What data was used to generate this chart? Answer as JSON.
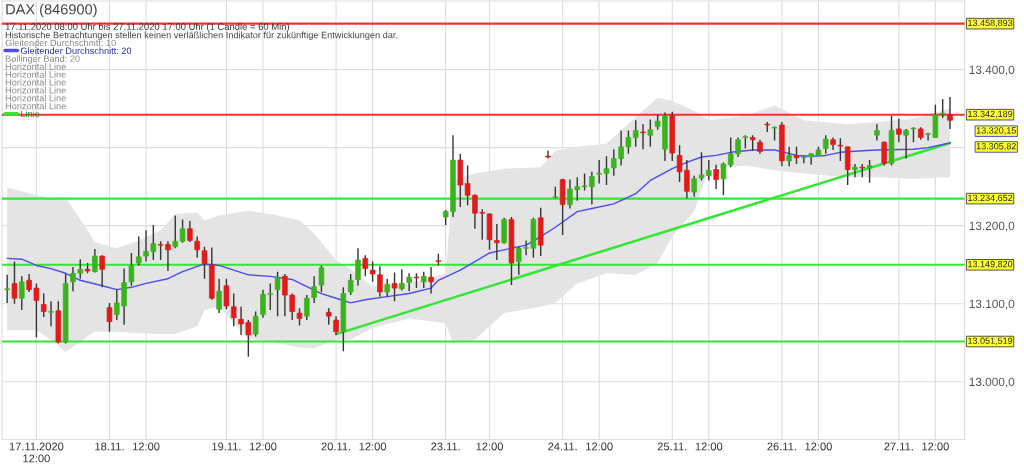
{
  "chart_data": {
    "type": "candlestick",
    "title": "DAX (846900)",
    "subtitle": "17.11.2020 08:00 Uhr bis 27.11.2020 17:00 Uhr (1 Candle = 60 Min)",
    "categories": [
      null,
      null,
      null,
      null,
      "17.11.2020\n12:00",
      null,
      null,
      null,
      null,
      null,
      null,
      null,
      null,
      null,
      "18.11.",
      null,
      null,
      null,
      null,
      "12:00",
      null,
      null,
      null,
      null,
      null,
      null,
      null,
      null,
      null,
      null,
      "19.11.",
      null,
      null,
      null,
      null,
      "12:00",
      null,
      null,
      null,
      null,
      null,
      null,
      null,
      null,
      null,
      "20.11.",
      null,
      null,
      null,
      null,
      "12:00",
      null,
      null,
      null,
      null,
      null,
      null,
      null,
      null,
      null,
      "23.11.",
      null,
      null,
      null,
      null,
      null,
      "12:00",
      null,
      null,
      null,
      null,
      null,
      null,
      null,
      null,
      null,
      "24.11.",
      null,
      null,
      null,
      null,
      "12:00",
      null,
      null,
      null,
      null,
      null,
      null,
      null,
      null,
      null,
      "25.11.",
      null,
      null,
      null,
      null,
      "12:00",
      null,
      null,
      null,
      null,
      null,
      null,
      null,
      null,
      null,
      "26.11.",
      null,
      null,
      null,
      null,
      "12:00",
      null,
      null,
      null,
      null,
      null,
      null,
      null,
      null,
      null,
      null,
      "27.11.",
      null,
      null,
      null,
      null,
      "12:00",
      null,
      null
    ],
    "ohlc": [
      [
        13118,
        13137,
        13101,
        13119
      ],
      [
        13126,
        13154,
        13100,
        13107
      ],
      [
        13107,
        13135,
        13092,
        13128
      ],
      [
        13130,
        13138,
        13115,
        13118
      ],
      [
        13120,
        13126,
        13057,
        13104
      ],
      [
        13099,
        13113,
        13083,
        13090
      ],
      [
        13089,
        13103,
        13071,
        13090
      ],
      [
        13091,
        13103,
        13049,
        13051
      ],
      [
        13051,
        13138,
        13049,
        13126
      ],
      [
        13128,
        13147,
        13116,
        13139
      ],
      [
        13139,
        13157,
        13132,
        13144
      ],
      [
        13144,
        13152,
        13139,
        13142
      ],
      [
        13141,
        13170,
        13140,
        13161
      ],
      [
        13161,
        13162,
        13121,
        13144
      ],
      [
        13095,
        13101,
        13064,
        13077
      ],
      [
        13086,
        13118,
        13079,
        13101
      ],
      [
        13097,
        13145,
        13073,
        13127
      ],
      [
        13128,
        13165,
        13123,
        13149
      ],
      [
        13152,
        13186,
        13149,
        13160
      ],
      [
        13161,
        13194,
        13154,
        13167
      ],
      [
        13167,
        13201,
        13156,
        13177
      ],
      [
        13176,
        13180,
        13156,
        13175
      ],
      [
        13176,
        13180,
        13142,
        13169
      ],
      [
        13173,
        13213,
        13171,
        13180
      ],
      [
        13180,
        13208,
        13178,
        13196
      ],
      [
        13196,
        13206,
        13179,
        13181
      ],
      [
        13180,
        13186,
        13159,
        13169
      ],
      [
        13168,
        13173,
        13132,
        13151
      ],
      [
        13150,
        13172,
        13105,
        13107
      ],
      [
        13093,
        13132,
        13088,
        13116
      ],
      [
        13123,
        13132,
        13093,
        13097
      ],
      [
        13096,
        13113,
        13071,
        13082
      ],
      [
        13080,
        13096,
        13060,
        13074
      ],
      [
        13076,
        13079,
        13032,
        13060
      ],
      [
        13061,
        13090,
        13058,
        13084
      ],
      [
        13086,
        13118,
        13082,
        13112
      ],
      [
        13112,
        13126,
        13092,
        13113
      ],
      [
        13118,
        13141,
        13084,
        13134
      ],
      [
        13135,
        13138,
        13084,
        13111
      ],
      [
        13111,
        13113,
        13079,
        13090
      ],
      [
        13088,
        13094,
        13072,
        13081
      ],
      [
        13084,
        13111,
        13079,
        13107
      ],
      [
        13108,
        13135,
        13101,
        13122
      ],
      [
        13124,
        13149,
        13115,
        13146
      ],
      [
        13089,
        13094,
        13073,
        13084
      ],
      [
        13079,
        13084,
        13060,
        13064
      ],
      [
        13064,
        13121,
        13039,
        13113
      ],
      [
        13115,
        13138,
        13111,
        13130
      ],
      [
        13131,
        13171,
        13123,
        13156
      ],
      [
        13158,
        13162,
        13135,
        13145
      ],
      [
        13143,
        13154,
        13128,
        13138
      ],
      [
        13137,
        13148,
        13109,
        13115
      ],
      [
        13115,
        13132,
        13109,
        13125
      ],
      [
        13126,
        13140,
        13103,
        13120
      ],
      [
        13119,
        13144,
        13117,
        13126
      ],
      [
        13127,
        13139,
        13116,
        13134
      ],
      [
        13134,
        13139,
        13120,
        13133
      ],
      [
        13128,
        13141,
        13120,
        13135
      ],
      [
        13134,
        13147,
        13113,
        13128
      ],
      [
        13155,
        13164,
        13149,
        13154
      ],
      [
        13211,
        13220,
        13201,
        13218
      ],
      [
        13218,
        13316,
        13211,
        13284
      ],
      [
        13284,
        13292,
        13224,
        13252
      ],
      [
        13254,
        13277,
        13226,
        13239
      ],
      [
        13239,
        13240,
        13196,
        13216
      ],
      [
        13217,
        13221,
        13182,
        13216
      ],
      [
        13215,
        13216,
        13169,
        13182
      ],
      [
        13181,
        13202,
        13156,
        13178
      ],
      [
        13178,
        13210,
        13177,
        13208
      ],
      [
        13208,
        13211,
        13124,
        13152
      ],
      [
        13154,
        13173,
        13137,
        13171
      ],
      [
        13171,
        13181,
        13162,
        13172
      ],
      [
        13171,
        13210,
        13159,
        13208
      ],
      [
        13210,
        13223,
        13161,
        13175
      ],
      [
        13289,
        13296,
        13286,
        13288
      ],
      [
        13236,
        13250,
        13235,
        13237
      ],
      [
        13259,
        13260,
        13188,
        13227
      ],
      [
        13227,
        13259,
        13222,
        13247
      ],
      [
        13246,
        13262,
        13232,
        13250
      ],
      [
        13250,
        13267,
        13245,
        13251
      ],
      [
        13250,
        13269,
        13227,
        13263
      ],
      [
        13266,
        13284,
        13254,
        13267
      ],
      [
        13267,
        13289,
        13252,
        13273
      ],
      [
        13274,
        13298,
        13264,
        13286
      ],
      [
        13286,
        13322,
        13277,
        13301
      ],
      [
        13301,
        13322,
        13292,
        13313
      ],
      [
        13313,
        13335,
        13301,
        13322
      ],
      [
        13320,
        13330,
        13298,
        13319
      ],
      [
        13316,
        13336,
        13301,
        13323
      ],
      [
        13327,
        13342,
        13323,
        13334
      ],
      [
        13298,
        13345,
        13283,
        13341
      ],
      [
        13341,
        13346,
        13283,
        13293
      ],
      [
        13290,
        13303,
        13256,
        13269
      ],
      [
        13271,
        13284,
        13235,
        13244
      ],
      [
        13243,
        13264,
        13237,
        13260
      ],
      [
        13261,
        13294,
        13258,
        13265
      ],
      [
        13264,
        13284,
        13258,
        13271
      ],
      [
        13272,
        13278,
        13247,
        13259
      ],
      [
        13260,
        13281,
        13239,
        13279
      ],
      [
        13278,
        13313,
        13275,
        13292
      ],
      [
        13292,
        13313,
        13288,
        13310
      ],
      [
        13313,
        13316,
        13299,
        13314
      ],
      [
        13313,
        13316,
        13296,
        13310
      ],
      [
        13307,
        13310,
        13292,
        13295
      ],
      [
        13330,
        13333,
        13320,
        13329
      ],
      [
        13325,
        13327,
        13309,
        13326
      ],
      [
        13329,
        13333,
        13276,
        13283
      ],
      [
        13283,
        13301,
        13276,
        13290
      ],
      [
        13290,
        13301,
        13279,
        13287
      ],
      [
        13287,
        13289,
        13280,
        13288
      ],
      [
        13288,
        13293,
        13278,
        13292
      ],
      [
        13290,
        13301,
        13290,
        13297
      ],
      [
        13299,
        13316,
        13292,
        13311
      ],
      [
        13310,
        13313,
        13297,
        13304
      ],
      [
        13303,
        13312,
        13283,
        13302
      ],
      [
        13301,
        13301,
        13252,
        13272
      ],
      [
        13272,
        13279,
        13262,
        13275
      ],
      [
        13275,
        13279,
        13262,
        13274
      ],
      [
        13274,
        13284,
        13255,
        13277
      ],
      [
        13316,
        13330,
        13309,
        13322
      ],
      [
        13307,
        13308,
        13277,
        13280
      ],
      [
        13280,
        13341,
        13277,
        13322
      ],
      [
        13324,
        13337,
        13307,
        13317
      ],
      [
        13316,
        13324,
        13286,
        13322
      ],
      [
        13324,
        13326,
        13307,
        13325
      ],
      [
        13324,
        13326,
        13310,
        13313
      ],
      [
        13317,
        13319,
        13309,
        13318
      ],
      [
        13313,
        13355,
        13313,
        13342
      ],
      [
        13343,
        13362,
        13338,
        13344
      ],
      [
        13342,
        13365,
        13324,
        13335
      ]
    ],
    "series": [
      {
        "name": "Gleitender Durchschnitt: 20",
        "type": "line",
        "color": "#4b4bf0",
        "values": [
          13158,
          null,
          13157,
          null,
          13149,
          null,
          13145,
          null,
          13139,
          null,
          13130,
          null,
          null,
          13123,
          null,
          13118,
          null,
          13121,
          null,
          13126,
          null,
          null,
          13132,
          null,
          13141,
          null,
          null,
          13151,
          null,
          13149,
          null,
          13143,
          null,
          13137,
          null,
          null,
          13135,
          null,
          null,
          13131,
          null,
          13122,
          null,
          13113,
          null,
          13107,
          null,
          13101,
          null,
          13105,
          null,
          null,
          13109,
          null,
          null,
          13113,
          null,
          null,
          13120,
          13130,
          null,
          null,
          13143,
          null,
          13154,
          null,
          13165,
          null,
          null,
          13171,
          null,
          13175,
          null,
          13186,
          null,
          13198,
          null,
          null,
          13218,
          null,
          13222,
          null,
          null,
          13228,
          null,
          null,
          13241,
          null,
          13258,
          null,
          null,
          13273,
          null,
          13281,
          null,
          13288,
          null,
          13290,
          null,
          13294,
          null,
          null,
          13297,
          null,
          null,
          13297,
          null,
          null,
          13290,
          null,
          13289,
          null,
          13290,
          null,
          13294,
          null,
          null,
          13296,
          null,
          13297,
          null,
          null,
          null,
          null,
          13298,
          null,
          13300,
          null,
          13304,
          13306
        ],
        "upper": [
          13249,
          null,
          null,
          null,
          13239,
          null,
          13235,
          null,
          13236,
          null,
          null,
          13194,
          13179,
          null,
          null,
          13171,
          null,
          null,
          13181,
          null,
          null,
          13194,
          null,
          13215,
          null,
          null,
          13217,
          13207,
          null,
          13213,
          null,
          null,
          null,
          13219,
          null,
          null,
          13215,
          null,
          null,
          null,
          13207,
          null,
          13190,
          null,
          null,
          13156,
          null,
          13144,
          null,
          null,
          13122,
          null,
          null,
          null,
          null,
          13126,
          null,
          null,
          null,
          null,
          13139,
          13258,
          null,
          null,
          13267,
          null,
          null,
          null,
          13273,
          null,
          null,
          null,
          null,
          13275,
          null,
          13296,
          null,
          null,
          13301,
          null,
          null,
          null,
          13305,
          null,
          null,
          null,
          13339,
          null,
          null,
          13364,
          null,
          13360,
          null,
          null,
          13347,
          null,
          13335,
          null,
          null,
          null,
          null,
          13341,
          null,
          null,
          null,
          13354,
          null,
          null,
          null,
          13335,
          null,
          null,
          null,
          null,
          null,
          13330,
          null,
          null,
          null,
          13333,
          null,
          null,
          null,
          null,
          13337,
          null,
          null,
          null,
          null,
          13350
        ],
        "lower": [
          13066,
          null,
          null,
          null,
          13066,
          null,
          13054,
          null,
          13038,
          null,
          null,
          13058,
          13064,
          null,
          null,
          13064,
          null,
          null,
          13062,
          null,
          null,
          13061,
          null,
          13061,
          null,
          null,
          13071,
          13092,
          null,
          13096,
          null,
          null,
          null,
          13055,
          null,
          null,
          13052,
          null,
          null,
          null,
          13044,
          null,
          13043,
          null,
          null,
          13054,
          null,
          13054,
          null,
          null,
          13069,
          null,
          null,
          null,
          null,
          13081,
          null,
          null,
          null,
          null,
          13075,
          13049,
          null,
          null,
          13054,
          null,
          null,
          null,
          13088,
          null,
          null,
          null,
          null,
          13096,
          null,
          13101,
          null,
          null,
          13126,
          null,
          null,
          null,
          13139,
          null,
          null,
          null,
          13137,
          null,
          null,
          13152,
          null,
          13186,
          null,
          null,
          13218,
          null,
          13273,
          null,
          null,
          null,
          null,
          13277,
          null,
          null,
          null,
          13271,
          null,
          null,
          null,
          13267,
          null,
          null,
          null,
          null,
          null,
          13262,
          null,
          null,
          null,
          13262,
          null,
          null,
          null,
          null,
          13260,
          null,
          null,
          null,
          null,
          13262
        ]
      },
      {
        "name": "Linie",
        "type": "line",
        "color": "#33e633",
        "values": [
          null,
          null,
          null,
          null,
          null,
          null,
          null,
          null,
          null,
          null,
          null,
          null,
          null,
          null,
          null,
          null,
          null,
          null,
          null,
          null,
          null,
          null,
          null,
          null,
          null,
          null,
          null,
          null,
          null,
          null,
          null,
          null,
          null,
          null,
          null,
          null,
          null,
          null,
          null,
          null,
          null,
          null,
          null,
          null,
          null,
          13061,
          null,
          null,
          null,
          null,
          null,
          null,
          null,
          null,
          null,
          null,
          null,
          null,
          null,
          null,
          null,
          null,
          null,
          null,
          null,
          null,
          null,
          null,
          null,
          null,
          null,
          null,
          null,
          null,
          null,
          null,
          null,
          null,
          null,
          null,
          null,
          null,
          null,
          null,
          null,
          null,
          null,
          null,
          null,
          null,
          null,
          null,
          null,
          null,
          null,
          null,
          null,
          null,
          null,
          null,
          null,
          null,
          null,
          null,
          null,
          null,
          null,
          null,
          null,
          null,
          null,
          null,
          null,
          null,
          null,
          null,
          null,
          null,
          null,
          null,
          null,
          null,
          null,
          null,
          null,
          null,
          null,
          null,
          null,
          13306
        ]
      }
    ],
    "ref_lines": [
      {
        "axis": "y",
        "value": 13458.893,
        "label": "13.458,893",
        "color": "#ee3333"
      },
      {
        "axis": "y",
        "value": 13342.189,
        "label": "13.342,189",
        "color": "#ee3333"
      },
      {
        "axis": "y",
        "value": 13234.652,
        "label": "13.234,652",
        "color": "#33e633"
      },
      {
        "axis": "y",
        "value": 13149.82,
        "label": "13.149,820",
        "color": "#33e633"
      },
      {
        "axis": "y",
        "value": 13051.519,
        "label": "13.051,519",
        "color": "#33e633"
      }
    ],
    "annotations": [
      "Historische Betrachtungen stellen keinen verläßlichen Indikator für zukünftige Entwicklungen dar.",
      "Gleitender Durchschnitt: 10",
      "Bollinger Band: 20",
      "Horizontal Line",
      "Horizontal Line",
      "Horizontal Line",
      "Horizontal Line",
      "Horizontal Line",
      "Horizontal Line",
      "13.320,15",
      "13.305,82"
    ],
    "ylim": [
      12926,
      13488
    ],
    "yticks": [
      {
        "value": 13000,
        "label": "13.000,0"
      },
      {
        "value": 13100,
        "label": "13.100,0"
      },
      {
        "value": 13200,
        "label": "13.200,0"
      },
      {
        "value": 13300,
        "label": null
      },
      {
        "value": 13400,
        "label": "13.400,0"
      }
    ],
    "grid": true,
    "legend": "top left"
  }
}
